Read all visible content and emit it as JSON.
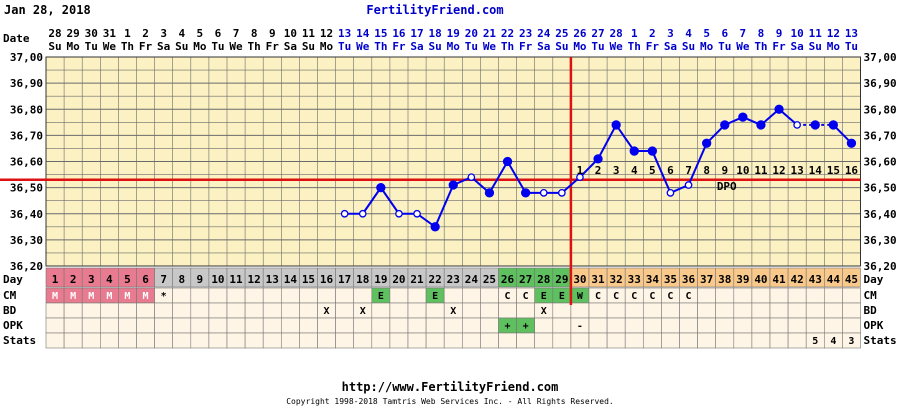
{
  "header": {
    "date": "Jan 28, 2018",
    "site": "FertilityFriend.com"
  },
  "footer": {
    "url": "http://www.FertilityFriend.com",
    "copyright": "Copyright 1998-2018 Tamtris Web Services Inc. - All Rights Reserved."
  },
  "row_labels": {
    "date": "Date",
    "day": "Day",
    "cm": "CM",
    "bd": "BD",
    "opk": "OPK",
    "stats": "Stats"
  },
  "colors": {
    "background": "#ffffff",
    "plot_bg": "#fbf1c2",
    "grid": "#6b6b6b",
    "series": "#0000ee",
    "coverline": "#dd1111",
    "ovulation": "#dd1111",
    "menses": "#e87b8f",
    "day_gray": "#c8c8c8",
    "fertile": "#5fc05f",
    "luteal": "#f9c98b",
    "row_bg": "#fff5e6"
  },
  "chart_data": {
    "type": "line",
    "ylim": [
      36.2,
      37.0
    ],
    "yticks": [
      "36,20",
      "36,30",
      "36,40",
      "36,50",
      "36,60",
      "36,70",
      "36,80",
      "36,90",
      "37,00"
    ],
    "dates": [
      "28",
      "29",
      "30",
      "31",
      "1",
      "2",
      "3",
      "4",
      "5",
      "6",
      "7",
      "8",
      "9",
      "10",
      "11",
      "12",
      "13",
      "14",
      "15",
      "16",
      "17",
      "18",
      "19",
      "20",
      "21",
      "22",
      "23",
      "24",
      "25",
      "26",
      "27",
      "28",
      "1",
      "2",
      "3",
      "4",
      "5",
      "6",
      "7",
      "8",
      "9",
      "10",
      "11",
      "12",
      "13"
    ],
    "weekdays": [
      "Su",
      "Mo",
      "Tu",
      "We",
      "Th",
      "Fr",
      "Sa",
      "Su",
      "Mo",
      "Tu",
      "We",
      "Th",
      "Fr",
      "Sa",
      "Su",
      "Mo",
      "Tu",
      "We",
      "Th",
      "Fr",
      "Sa",
      "Su",
      "Mo",
      "Tu",
      "We",
      "Th",
      "Fr",
      "Sa",
      "Su",
      "Mo",
      "Tu",
      "We",
      "Th",
      "Fr",
      "Sa",
      "Su",
      "Mo",
      "Tu",
      "We",
      "Th",
      "Fr",
      "Sa",
      "Su",
      "Mo",
      "Tu"
    ],
    "highlight_dates": [
      "13",
      "14",
      "15",
      "16",
      "17",
      "18",
      "19",
      "20",
      "21",
      "22",
      "23",
      "24",
      "25",
      "26",
      "27",
      "28",
      "1",
      "2",
      "3",
      "4",
      "5",
      "6",
      "7",
      "8",
      "9",
      "10",
      "11",
      "12",
      "13"
    ],
    "highlight_from_index": 16,
    "days": [
      "1",
      "2",
      "3",
      "4",
      "5",
      "6",
      "7",
      "8",
      "9",
      "10",
      "11",
      "12",
      "13",
      "14",
      "15",
      "16",
      "17",
      "18",
      "19",
      "20",
      "21",
      "22",
      "23",
      "24",
      "25",
      "26",
      "27",
      "28",
      "29",
      "30",
      "31",
      "32",
      "33",
      "34",
      "35",
      "36",
      "37",
      "38",
      "39",
      "40",
      "41",
      "42",
      "43",
      "44",
      "45"
    ],
    "temperatures": [
      null,
      null,
      null,
      null,
      null,
      null,
      null,
      null,
      null,
      null,
      null,
      null,
      null,
      null,
      null,
      null,
      36.4,
      36.4,
      36.5,
      36.4,
      36.4,
      36.35,
      36.51,
      36.54,
      36.48,
      36.6,
      36.48,
      36.48,
      36.48,
      36.54,
      36.61,
      36.74,
      36.64,
      36.64,
      36.48,
      36.51,
      36.67,
      36.74,
      36.77,
      36.74,
      36.8,
      36.74,
      36.74,
      36.74,
      36.67
    ],
    "open_points": [
      16,
      17,
      19,
      20,
      23,
      27,
      28,
      29,
      34,
      35,
      41
    ],
    "dashed_from_index": 41,
    "dashed_to_index": 43,
    "coverline": 36.53,
    "ovulation_day_index": 28,
    "dpo_labels": [
      "1",
      "2",
      "3",
      "4",
      "5",
      "6",
      "7",
      "8",
      "9",
      "10",
      "11",
      "12",
      "13",
      "14",
      "15",
      "16"
    ],
    "dpo_start_index": 29,
    "dpo_text": "DPO",
    "cm": [
      "M",
      "M",
      "M",
      "M",
      "M",
      "M",
      "*",
      "",
      "",
      "",
      "",
      "",
      "",
      "",
      "",
      "",
      "",
      "",
      "E",
      "",
      "",
      "E",
      "",
      "",
      "",
      "C",
      "C",
      "E",
      "E",
      "W",
      "C",
      "C",
      "C",
      "C",
      "C",
      "C",
      "",
      "",
      "",
      "",
      "",
      "",
      "",
      "",
      ""
    ],
    "bd": [
      "",
      "",
      "",
      "",
      "",
      "",
      "",
      "",
      "",
      "",
      "",
      "",
      "",
      "",
      "",
      "X",
      "",
      "X",
      "",
      "",
      "",
      "",
      "X",
      "",
      "",
      "",
      "",
      "X",
      "",
      "",
      "",
      "",
      "",
      "",
      "",
      "",
      "",
      "",
      "",
      "",
      "",
      "",
      "",
      "",
      ""
    ],
    "opk": [
      "",
      "",
      "",
      "",
      "",
      "",
      "",
      "",
      "",
      "",
      "",
      "",
      "",
      "",
      "",
      "",
      "",
      "",
      "",
      "",
      "",
      "",
      "",
      "",
      "",
      "+",
      "+",
      "",
      "",
      "-",
      "",
      "",
      "",
      "",
      "",
      "",
      "",
      "",
      "",
      "",
      "",
      "",
      "",
      "",
      ""
    ],
    "stats": [
      "",
      "",
      "",
      "",
      "",
      "",
      "",
      "",
      "",
      "",
      "",
      "",
      "",
      "",
      "",
      "",
      "",
      "",
      "",
      "",
      "",
      "",
      "",
      "",
      "",
      "",
      "",
      "",
      "",
      "",
      "",
      "",
      "",
      "",
      "",
      "",
      "",
      "",
      "",
      "",
      "",
      "",
      "5",
      "4",
      "3"
    ]
  }
}
